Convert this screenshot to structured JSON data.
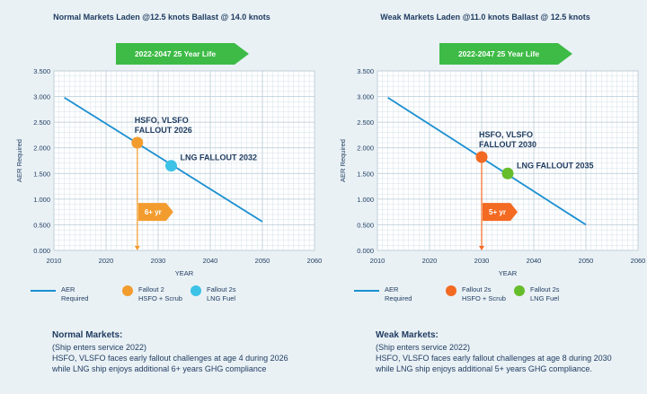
{
  "panels": [
    {
      "title": "Normal Markets  Laden @12.5 knots Ballast @ 14.0 knots",
      "banner": "2022-2047 25 Year Life",
      "legend": {
        "aer": [
          "AER",
          "Required"
        ],
        "fallout_a": [
          "Fallout 2",
          "HSFO + Scrub"
        ],
        "fallout_b": [
          "Fallout 2s",
          "LNG Fuel"
        ]
      },
      "notes": {
        "heading": "Normal Markets:",
        "lines": [
          "(Ship enters service 2022)",
          "HSFO, VLSFO faces early fallout challenges at age 4 during 2026",
          "while LNG ship enjoys additional 6+ years GHG compliance"
        ]
      }
    },
    {
      "title": "Weak Markets  Laden @11.0 knots Ballast @ 12.5 knots",
      "banner": "2022-2047 25 Year Life",
      "legend": {
        "aer": [
          "AER",
          "Required"
        ],
        "fallout_a": [
          "Fallout 2s",
          "HSFO + Scrub"
        ],
        "fallout_b": [
          "Fallout 2s",
          "LNG Fuel"
        ]
      },
      "notes": {
        "heading": "Weak Markets:",
        "lines": [
          "(Ship enters service 2022)",
          "HSFO, VLSFO faces early fallout challenges at age 8 during 2030",
          "while LNG ship enjoys additional 5+ years GHG compliance."
        ]
      }
    }
  ],
  "chart_data": [
    {
      "type": "line",
      "title": "Normal Markets  Laden @12.5 knots Ballast @ 14.0 knots",
      "xlabel": "YEAR",
      "ylabel": "AER Required",
      "xlim": [
        2010,
        2060
      ],
      "ylim": [
        0,
        3.5
      ],
      "xticks": [
        2010,
        2020,
        2030,
        2040,
        2050,
        2060
      ],
      "xtick_labels": [
        "2010",
        "2020",
        "2030",
        "2040",
        "2050",
        "2060"
      ],
      "yticks": [
        0,
        0.5,
        1,
        1.5,
        2,
        2.5,
        3,
        3.5
      ],
      "ytick_labels": [
        "0.000",
        "0.500",
        "1.000",
        "1.500",
        "2.000",
        "2.500",
        "3.000",
        "3.500"
      ],
      "grid": true,
      "series": [
        {
          "name": "AER Required",
          "x": [
            2012,
            2050
          ],
          "y": [
            2.98,
            0.56
          ],
          "color": "#1a8fd0"
        }
      ],
      "points": [
        {
          "name": "HSFO, VLSFO FALLOUT 2026",
          "label_lines": [
            "HSFO, VLSFO",
            "FALLOUT 2026"
          ],
          "x": 2026,
          "y": 2.1,
          "color": "#f39c2e",
          "label_side": "top-right"
        },
        {
          "name": "LNG FALLOUT 2032",
          "label_lines": [
            "LNG FALLOUT 2032"
          ],
          "x": 2032.5,
          "y": 1.65,
          "color": "#3cc2e6",
          "label_side": "right"
        }
      ],
      "gap_label": "6+ yr",
      "gap_color": "#f39c2e",
      "gap_arrow_y": 0.75,
      "banner_color": "#3dbb46"
    },
    {
      "type": "line",
      "title": "Weak Markets  Laden @11.0 knots Ballast @ 12.5 knots",
      "xlabel": "YEAR",
      "ylabel": "AER Required",
      "xlim": [
        2010,
        2060
      ],
      "ylim": [
        0,
        3.5
      ],
      "xticks": [
        2010,
        2020,
        2030,
        2040,
        2050,
        2060
      ],
      "xtick_labels": [
        "2010",
        "2020",
        "2030",
        "2040",
        "2050",
        "2060"
      ],
      "yticks": [
        0,
        0.5,
        1,
        1.5,
        2,
        2.5,
        3,
        3.5
      ],
      "ytick_labels": [
        "0.000",
        "0.500",
        "1.000",
        "1.500",
        "2.000",
        "2.500",
        "3.000",
        "3.500"
      ],
      "grid": true,
      "series": [
        {
          "name": "AER Required",
          "x": [
            2012,
            2050
          ],
          "y": [
            2.98,
            0.5
          ],
          "color": "#1a8fd0"
        }
      ],
      "points": [
        {
          "name": "HSFO, VLSFO FALLOUT 2030",
          "label_lines": [
            "HSFO, VLSFO",
            "FALLOUT 2030"
          ],
          "x": 2030,
          "y": 1.82,
          "color": "#f36a22",
          "label_side": "top-right"
        },
        {
          "name": "LNG FALLOUT 2035",
          "label_lines": [
            "LNG FALLOUT 2035"
          ],
          "x": 2035,
          "y": 1.5,
          "color": "#66bd2c",
          "label_side": "right"
        }
      ],
      "gap_label": "5+ yr",
      "gap_color": "#f36a22",
      "gap_arrow_y": 0.75,
      "banner_color": "#3dbb46"
    }
  ]
}
